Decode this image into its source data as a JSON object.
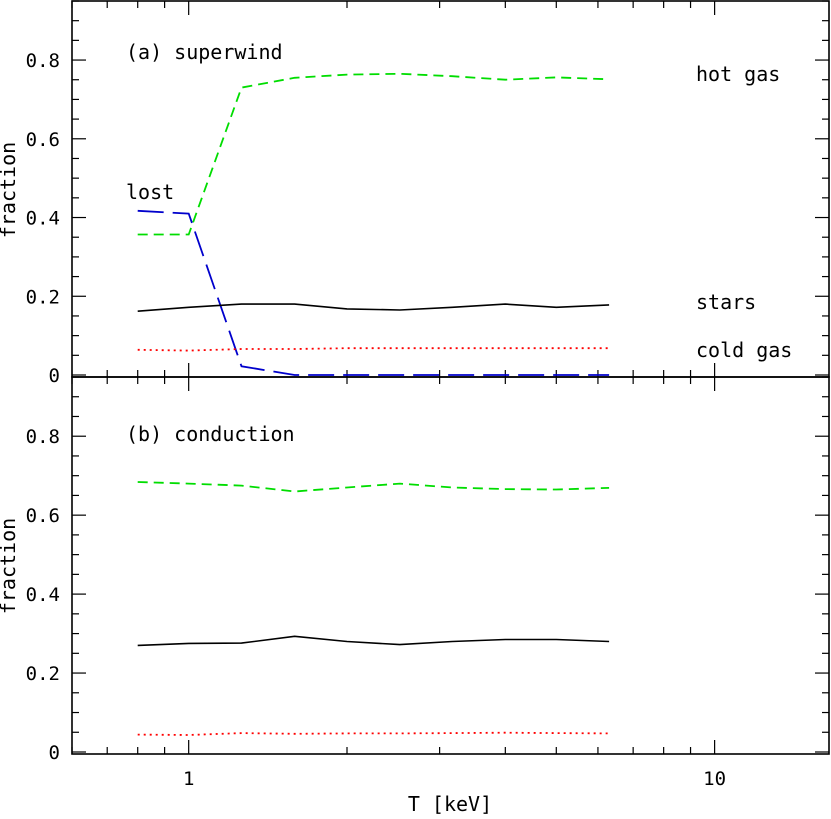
{
  "chart_data": [
    {
      "panel": "a",
      "type": "line",
      "title": "(a) superwind",
      "xlabel": "T [keV]",
      "ylabel": "fraction",
      "xscale": "log",
      "xlim": [
        0.6,
        16.5
      ],
      "ylim": [
        0,
        0.95
      ],
      "xticks_labeled": [
        1,
        10
      ],
      "xtick_labels": [
        "1",
        "10"
      ],
      "yticks_labeled": [
        0,
        0.2,
        0.4,
        0.6,
        0.8
      ],
      "ytick_labels": [
        "0",
        "0.2",
        "0.4",
        "0.6",
        "0.8"
      ],
      "grid": false,
      "x": [
        0.8,
        1.0,
        1.26,
        1.59,
        2.0,
        2.52,
        3.17,
        4.0,
        5.0,
        6.3
      ],
      "series": [
        {
          "name": "hot gas",
          "color": "#00dd00",
          "style": "short-dash",
          "values": [
            0.357,
            0.357,
            0.73,
            0.755,
            0.763,
            0.765,
            0.759,
            0.75,
            0.756,
            0.751
          ]
        },
        {
          "name": "lost",
          "color": "#0000cc",
          "style": "long-dash",
          "values": [
            0.417,
            0.41,
            0.022,
            0.0,
            0.0,
            0.0,
            0.0,
            0.0,
            0.0,
            0.0
          ]
        },
        {
          "name": "stars",
          "color": "#000000",
          "style": "solid",
          "values": [
            0.162,
            0.172,
            0.18,
            0.18,
            0.168,
            0.165,
            0.172,
            0.18,
            0.172,
            0.178
          ]
        },
        {
          "name": "cold gas",
          "color": "#ff0000",
          "style": "dotted",
          "values": [
            0.064,
            0.062,
            0.066,
            0.066,
            0.068,
            0.068,
            0.068,
            0.068,
            0.068,
            0.068
          ]
        }
      ]
    },
    {
      "panel": "b",
      "type": "line",
      "title": "(b) conduction",
      "xlabel": "T [keV]",
      "ylabel": "fraction",
      "xscale": "log",
      "xlim": [
        0.6,
        16.5
      ],
      "ylim": [
        0,
        0.95
      ],
      "xticks_labeled": [
        1,
        10
      ],
      "xtick_labels": [
        "1",
        "10"
      ],
      "yticks_labeled": [
        0,
        0.2,
        0.4,
        0.6,
        0.8
      ],
      "ytick_labels": [
        "0",
        "0.2",
        "0.4",
        "0.6",
        "0.8"
      ],
      "grid": false,
      "x": [
        0.8,
        1.0,
        1.26,
        1.59,
        2.0,
        2.52,
        3.17,
        4.0,
        5.0,
        6.3
      ],
      "series": [
        {
          "color": "#00dd00",
          "style": "short-dash",
          "values": [
            0.684,
            0.68,
            0.675,
            0.66,
            0.67,
            0.68,
            0.67,
            0.666,
            0.665,
            0.669
          ]
        },
        {
          "color": "#000000",
          "style": "solid",
          "values": [
            0.27,
            0.275,
            0.276,
            0.293,
            0.28,
            0.272,
            0.28,
            0.285,
            0.285,
            0.28
          ]
        },
        {
          "color": "#ff0000",
          "style": "dotted",
          "values": [
            0.044,
            0.043,
            0.048,
            0.046,
            0.047,
            0.047,
            0.048,
            0.049,
            0.048,
            0.047
          ]
        }
      ]
    }
  ],
  "annotations": {
    "hot_gas": "hot gas",
    "lost": "lost",
    "stars": "stars",
    "cold_gas": "cold gas"
  },
  "colors": {
    "hot_gas": "#00dd00",
    "lost": "#0000cc",
    "stars": "#000000",
    "cold_gas": "#ff0000"
  }
}
